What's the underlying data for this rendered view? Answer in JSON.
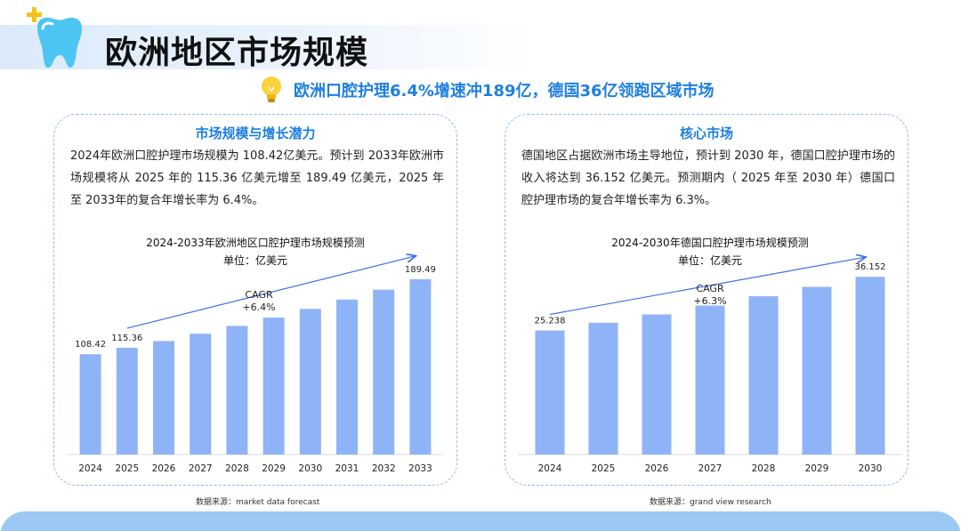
{
  "page": {
    "title": "欧洲地区市场规模",
    "headline": "欧洲口腔护理6.4%增速冲189亿，德国36亿领跑区域市场",
    "icons": [
      "tooth-icon",
      "plus-icon",
      "lightbulb-icon"
    ],
    "colors": {
      "accent": "#1f7fe0",
      "bar": "#8fb3f7",
      "arrow": "#3f6fe8",
      "band": "#9cc8f4"
    }
  },
  "left_panel": {
    "title": "市场规模与增长潜力",
    "text": "2024年欧洲口腔护理市场规模为 108.42亿美元。预计到 2033年欧洲市场规模将从 2025 年的 115.36 亿美元增至 189.49 亿美元，2025 年至 2033年的复合年增长率为 6.4%。",
    "source": "数据来源：market data forecast"
  },
  "right_panel": {
    "title": "核心市场",
    "text": "德国地区占据欧洲市场主导地位，预计到 2030 年，德国口腔护理市场的收入将达到 36.152 亿美元。预测期内（ 2025 年至 2030 年）德国口腔护理市场的复合年增长率为 6.3%。",
    "source": "数据来源：grand view research"
  },
  "chart_data": [
    {
      "type": "bar",
      "title": "2024-2033年欧洲地区口腔护理市场规模预测",
      "subtitle": "单位：亿美元",
      "categories": [
        "2024",
        "2025",
        "2026",
        "2027",
        "2028",
        "2029",
        "2030",
        "2031",
        "2032",
        "2033"
      ],
      "values": [
        108.42,
        115.36,
        122.7,
        130.6,
        139.0,
        148.0,
        157.4,
        167.5,
        178.2,
        189.49
      ],
      "data_labels": [
        "108.42",
        "115.36",
        "",
        "",
        "",
        "",
        "",
        "",
        "",
        "189.49"
      ],
      "annotation": {
        "line1": "CAGR",
        "line2": "+6.4%"
      },
      "ylim": [
        0,
        200
      ],
      "grid": false,
      "legend": "none"
    },
    {
      "type": "bar",
      "title": "2024-2030年德国口腔护理市场规模预测",
      "subtitle": "单位：亿美元",
      "categories": [
        "2024",
        "2025",
        "2026",
        "2027",
        "2028",
        "2029",
        "2030"
      ],
      "values": [
        25.238,
        26.8,
        28.5,
        30.3,
        32.2,
        34.1,
        36.152
      ],
      "data_labels": [
        "25.238",
        "",
        "",
        "",
        "",
        "",
        "36.152"
      ],
      "annotation": {
        "line1": "CAGR",
        "line2": "+6.3%"
      },
      "ylim": [
        0,
        38
      ],
      "grid": false,
      "legend": "none"
    }
  ]
}
